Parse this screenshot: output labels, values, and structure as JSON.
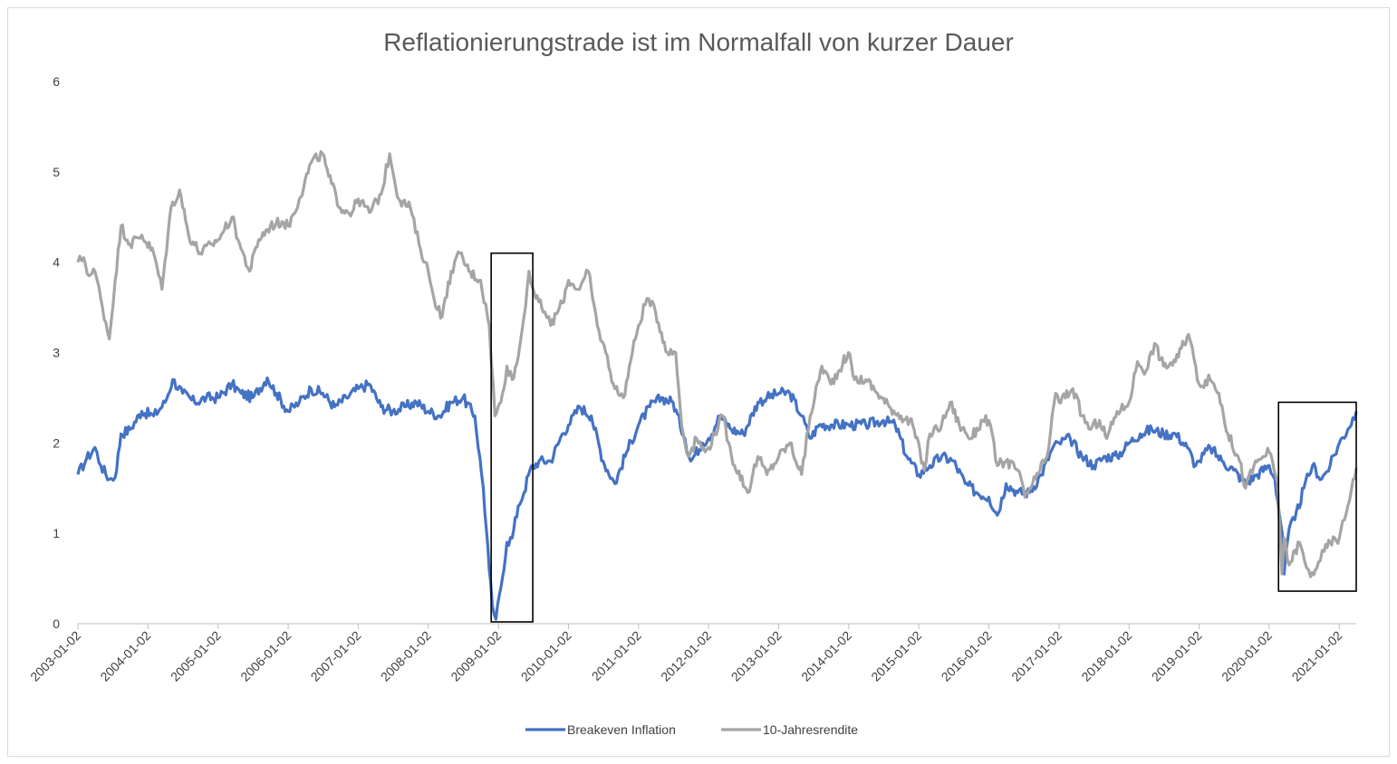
{
  "chart_data": {
    "type": "line",
    "title": "Reflationierungstrade ist im Normalfall von kurzer Dauer",
    "xlabel": "",
    "ylabel": "",
    "ylim": [
      0,
      6
    ],
    "y_ticks": [
      "0",
      "1",
      "2",
      "3",
      "4",
      "5",
      "6"
    ],
    "x_range": [
      "2003-01-02",
      "2021-03-31"
    ],
    "x_ticks": [
      "2003-01-02",
      "2004-01-02",
      "2005-01-02",
      "2006-01-02",
      "2007-01-02",
      "2008-01-02",
      "2009-01-02",
      "2010-01-02",
      "2011-01-02",
      "2012-01-02",
      "2013-01-02",
      "2014-01-02",
      "2015-01-02",
      "2016-01-02",
      "2017-01-02",
      "2018-01-02",
      "2019-01-02",
      "2020-01-02",
      "2021-01-02"
    ],
    "grid": false,
    "legend_position": "bottom",
    "series": [
      {
        "name": "Breakeven Inflation",
        "color": "#4472c4",
        "points": [
          [
            "2003-01-02",
            1.65
          ],
          [
            "2003-02-15",
            1.82
          ],
          [
            "2003-04-01",
            1.95
          ],
          [
            "2003-05-01",
            1.75
          ],
          [
            "2003-06-15",
            1.6
          ],
          [
            "2003-07-15",
            1.62
          ],
          [
            "2003-08-15",
            2.1
          ],
          [
            "2003-10-01",
            2.15
          ],
          [
            "2003-12-01",
            2.35
          ],
          [
            "2004-02-01",
            2.3
          ],
          [
            "2004-04-01",
            2.45
          ],
          [
            "2004-05-10",
            2.7
          ],
          [
            "2004-07-01",
            2.55
          ],
          [
            "2004-09-01",
            2.45
          ],
          [
            "2004-11-01",
            2.5
          ],
          [
            "2005-01-02",
            2.5
          ],
          [
            "2005-03-15",
            2.65
          ],
          [
            "2005-05-01",
            2.55
          ],
          [
            "2005-07-01",
            2.5
          ],
          [
            "2005-09-15",
            2.72
          ],
          [
            "2005-11-01",
            2.55
          ],
          [
            "2006-01-02",
            2.35
          ],
          [
            "2006-03-01",
            2.45
          ],
          [
            "2006-05-01",
            2.6
          ],
          [
            "2006-07-01",
            2.55
          ],
          [
            "2006-09-01",
            2.4
          ],
          [
            "2006-11-01",
            2.5
          ],
          [
            "2007-01-02",
            2.6
          ],
          [
            "2007-03-01",
            2.65
          ],
          [
            "2007-05-01",
            2.4
          ],
          [
            "2007-07-01",
            2.35
          ],
          [
            "2007-09-01",
            2.4
          ],
          [
            "2007-11-01",
            2.45
          ],
          [
            "2008-01-02",
            2.35
          ],
          [
            "2008-03-01",
            2.3
          ],
          [
            "2008-05-01",
            2.45
          ],
          [
            "2008-07-01",
            2.5
          ],
          [
            "2008-09-01",
            2.3
          ],
          [
            "2008-10-15",
            1.5
          ],
          [
            "2008-11-15",
            0.6
          ],
          [
            "2008-12-01",
            0.2
          ],
          [
            "2008-12-20",
            0.05
          ],
          [
            "2009-01-15",
            0.4
          ],
          [
            "2009-02-15",
            0.9
          ],
          [
            "2009-03-15",
            0.95
          ],
          [
            "2009-04-15",
            1.3
          ],
          [
            "2009-05-15",
            1.45
          ],
          [
            "2009-06-15",
            1.7
          ],
          [
            "2009-08-01",
            1.8
          ],
          [
            "2009-10-01",
            1.8
          ],
          [
            "2009-12-01",
            2.1
          ],
          [
            "2010-01-02",
            2.2
          ],
          [
            "2010-03-01",
            2.4
          ],
          [
            "2010-05-01",
            2.3
          ],
          [
            "2010-07-01",
            1.8
          ],
          [
            "2010-09-01",
            1.55
          ],
          [
            "2010-11-01",
            1.9
          ],
          [
            "2011-01-02",
            2.2
          ],
          [
            "2011-03-01",
            2.4
          ],
          [
            "2011-05-01",
            2.5
          ],
          [
            "2011-07-01",
            2.45
          ],
          [
            "2011-09-01",
            2.05
          ],
          [
            "2011-10-01",
            1.8
          ],
          [
            "2011-12-01",
            2.0
          ],
          [
            "2012-01-02",
            2.05
          ],
          [
            "2012-03-01",
            2.3
          ],
          [
            "2012-05-01",
            2.15
          ],
          [
            "2012-07-01",
            2.1
          ],
          [
            "2012-09-15",
            2.45
          ],
          [
            "2012-11-01",
            2.5
          ],
          [
            "2013-01-02",
            2.55
          ],
          [
            "2013-03-01",
            2.55
          ],
          [
            "2013-05-01",
            2.3
          ],
          [
            "2013-06-15",
            2.05
          ],
          [
            "2013-08-01",
            2.2
          ],
          [
            "2013-10-01",
            2.2
          ],
          [
            "2014-01-02",
            2.2
          ],
          [
            "2014-04-01",
            2.2
          ],
          [
            "2014-07-01",
            2.25
          ],
          [
            "2014-09-01",
            2.2
          ],
          [
            "2014-11-01",
            1.85
          ],
          [
            "2015-01-02",
            1.65
          ],
          [
            "2015-03-01",
            1.75
          ],
          [
            "2015-05-01",
            1.85
          ],
          [
            "2015-07-01",
            1.8
          ],
          [
            "2015-09-01",
            1.55
          ],
          [
            "2015-11-01",
            1.45
          ],
          [
            "2016-01-02",
            1.4
          ],
          [
            "2016-02-15",
            1.2
          ],
          [
            "2016-04-01",
            1.55
          ],
          [
            "2016-06-01",
            1.45
          ],
          [
            "2016-08-01",
            1.45
          ],
          [
            "2016-10-01",
            1.65
          ],
          [
            "2016-12-01",
            1.95
          ],
          [
            "2017-01-02",
            2.0
          ],
          [
            "2017-03-01",
            2.05
          ],
          [
            "2017-05-01",
            1.85
          ],
          [
            "2017-07-01",
            1.75
          ],
          [
            "2017-09-01",
            1.85
          ],
          [
            "2017-11-01",
            1.85
          ],
          [
            "2018-01-02",
            2.0
          ],
          [
            "2018-03-01",
            2.1
          ],
          [
            "2018-05-01",
            2.15
          ],
          [
            "2018-07-01",
            2.1
          ],
          [
            "2018-09-01",
            2.1
          ],
          [
            "2018-11-01",
            1.95
          ],
          [
            "2018-12-15",
            1.75
          ],
          [
            "2019-01-02",
            1.8
          ],
          [
            "2019-03-01",
            1.95
          ],
          [
            "2019-05-01",
            1.8
          ],
          [
            "2019-07-01",
            1.7
          ],
          [
            "2019-09-01",
            1.55
          ],
          [
            "2019-11-01",
            1.65
          ],
          [
            "2020-01-02",
            1.75
          ],
          [
            "2020-02-01",
            1.6
          ],
          [
            "2020-03-10",
            1.0
          ],
          [
            "2020-03-20",
            0.55
          ],
          [
            "2020-04-15",
            1.05
          ],
          [
            "2020-05-15",
            1.15
          ],
          [
            "2020-07-01",
            1.5
          ],
          [
            "2020-08-15",
            1.75
          ],
          [
            "2020-10-01",
            1.6
          ],
          [
            "2020-11-15",
            1.75
          ],
          [
            "2021-01-02",
            2.0
          ],
          [
            "2021-02-15",
            2.15
          ],
          [
            "2021-03-31",
            2.35
          ]
        ]
      },
      {
        "name": "10-Jahresrendite",
        "color": "#a5a5a5",
        "points": [
          [
            "2003-01-02",
            4.0
          ],
          [
            "2003-02-01",
            4.05
          ],
          [
            "2003-03-01",
            3.85
          ],
          [
            "2003-04-01",
            3.9
          ],
          [
            "2003-05-01",
            3.6
          ],
          [
            "2003-06-15",
            3.15
          ],
          [
            "2003-07-15",
            3.8
          ],
          [
            "2003-08-15",
            4.4
          ],
          [
            "2003-10-01",
            4.2
          ],
          [
            "2003-12-01",
            4.3
          ],
          [
            "2004-02-01",
            4.1
          ],
          [
            "2004-03-15",
            3.7
          ],
          [
            "2004-05-01",
            4.6
          ],
          [
            "2004-06-15",
            4.8
          ],
          [
            "2004-08-01",
            4.3
          ],
          [
            "2004-10-01",
            4.1
          ],
          [
            "2004-12-01",
            4.2
          ],
          [
            "2005-01-02",
            4.25
          ],
          [
            "2005-03-15",
            4.5
          ],
          [
            "2005-05-01",
            4.15
          ],
          [
            "2005-06-15",
            3.9
          ],
          [
            "2005-08-01",
            4.25
          ],
          [
            "2005-10-01",
            4.4
          ],
          [
            "2005-12-01",
            4.45
          ],
          [
            "2006-01-02",
            4.4
          ],
          [
            "2006-03-01",
            4.7
          ],
          [
            "2006-05-01",
            5.1
          ],
          [
            "2006-06-30",
            5.2
          ],
          [
            "2006-08-01",
            4.95
          ],
          [
            "2006-10-01",
            4.6
          ],
          [
            "2006-12-01",
            4.55
          ],
          [
            "2007-01-02",
            4.7
          ],
          [
            "2007-03-01",
            4.55
          ],
          [
            "2007-05-01",
            4.75
          ],
          [
            "2007-06-15",
            5.2
          ],
          [
            "2007-08-01",
            4.7
          ],
          [
            "2007-10-01",
            4.6
          ],
          [
            "2007-11-15",
            4.2
          ],
          [
            "2008-01-02",
            3.9
          ],
          [
            "2008-02-01",
            3.6
          ],
          [
            "2008-03-15",
            3.4
          ],
          [
            "2008-05-01",
            3.9
          ],
          [
            "2008-06-15",
            4.1
          ],
          [
            "2008-08-01",
            3.9
          ],
          [
            "2008-10-01",
            3.8
          ],
          [
            "2008-11-15",
            3.3
          ],
          [
            "2008-12-15",
            2.3
          ],
          [
            "2009-01-15",
            2.45
          ],
          [
            "2009-02-15",
            2.85
          ],
          [
            "2009-03-15",
            2.7
          ],
          [
            "2009-04-15",
            2.95
          ],
          [
            "2009-05-15",
            3.4
          ],
          [
            "2009-06-10",
            3.9
          ],
          [
            "2009-07-15",
            3.6
          ],
          [
            "2009-09-01",
            3.45
          ],
          [
            "2009-10-01",
            3.3
          ],
          [
            "2009-12-01",
            3.55
          ],
          [
            "2010-01-02",
            3.8
          ],
          [
            "2010-03-01",
            3.7
          ],
          [
            "2010-04-15",
            3.9
          ],
          [
            "2010-06-01",
            3.3
          ],
          [
            "2010-07-15",
            3.0
          ],
          [
            "2010-09-01",
            2.6
          ],
          [
            "2010-10-15",
            2.5
          ],
          [
            "2010-12-01",
            3.0
          ],
          [
            "2011-01-02",
            3.3
          ],
          [
            "2011-02-15",
            3.6
          ],
          [
            "2011-04-01",
            3.45
          ],
          [
            "2011-06-01",
            3.0
          ],
          [
            "2011-07-15",
            3.0
          ],
          [
            "2011-08-15",
            2.2
          ],
          [
            "2011-09-20",
            1.85
          ],
          [
            "2011-11-01",
            2.05
          ],
          [
            "2011-12-15",
            1.9
          ],
          [
            "2012-01-02",
            1.95
          ],
          [
            "2012-03-15",
            2.3
          ],
          [
            "2012-05-01",
            1.85
          ],
          [
            "2012-07-25",
            1.45
          ],
          [
            "2012-09-15",
            1.85
          ],
          [
            "2012-11-01",
            1.65
          ],
          [
            "2013-01-02",
            1.85
          ],
          [
            "2013-03-01",
            2.0
          ],
          [
            "2013-05-01",
            1.65
          ],
          [
            "2013-06-15",
            2.3
          ],
          [
            "2013-08-15",
            2.85
          ],
          [
            "2013-10-01",
            2.65
          ],
          [
            "2013-12-31",
            3.0
          ],
          [
            "2014-02-01",
            2.7
          ],
          [
            "2014-04-01",
            2.7
          ],
          [
            "2014-06-01",
            2.55
          ],
          [
            "2014-08-01",
            2.4
          ],
          [
            "2014-10-01",
            2.3
          ],
          [
            "2014-12-01",
            2.2
          ],
          [
            "2015-01-31",
            1.7
          ],
          [
            "2015-03-01",
            2.1
          ],
          [
            "2015-05-01",
            2.2
          ],
          [
            "2015-06-15",
            2.45
          ],
          [
            "2015-08-01",
            2.2
          ],
          [
            "2015-10-01",
            2.05
          ],
          [
            "2015-12-01",
            2.25
          ],
          [
            "2016-01-02",
            2.25
          ],
          [
            "2016-02-15",
            1.75
          ],
          [
            "2016-04-01",
            1.8
          ],
          [
            "2016-06-01",
            1.7
          ],
          [
            "2016-07-08",
            1.4
          ],
          [
            "2016-09-01",
            1.6
          ],
          [
            "2016-11-01",
            1.85
          ],
          [
            "2016-12-15",
            2.55
          ],
          [
            "2017-01-02",
            2.45
          ],
          [
            "2017-03-15",
            2.6
          ],
          [
            "2017-05-01",
            2.3
          ],
          [
            "2017-06-15",
            2.15
          ],
          [
            "2017-08-01",
            2.25
          ],
          [
            "2017-09-08",
            2.05
          ],
          [
            "2017-11-01",
            2.35
          ],
          [
            "2017-12-15",
            2.4
          ],
          [
            "2018-01-02",
            2.45
          ],
          [
            "2018-02-15",
            2.9
          ],
          [
            "2018-04-01",
            2.8
          ],
          [
            "2018-05-15",
            3.1
          ],
          [
            "2018-07-01",
            2.85
          ],
          [
            "2018-09-01",
            2.9
          ],
          [
            "2018-11-08",
            3.2
          ],
          [
            "2018-12-15",
            2.85
          ],
          [
            "2019-01-02",
            2.65
          ],
          [
            "2019-03-01",
            2.7
          ],
          [
            "2019-04-15",
            2.55
          ],
          [
            "2019-06-01",
            2.1
          ],
          [
            "2019-08-01",
            1.8
          ],
          [
            "2019-09-01",
            1.5
          ],
          [
            "2019-10-15",
            1.75
          ],
          [
            "2019-12-01",
            1.85
          ],
          [
            "2020-01-02",
            1.9
          ],
          [
            "2020-02-15",
            1.55
          ],
          [
            "2020-03-09",
            0.55
          ],
          [
            "2020-03-20",
            0.95
          ],
          [
            "2020-04-15",
            0.65
          ],
          [
            "2020-06-08",
            0.9
          ],
          [
            "2020-07-15",
            0.62
          ],
          [
            "2020-08-05",
            0.52
          ],
          [
            "2020-09-15",
            0.68
          ],
          [
            "2020-10-15",
            0.8
          ],
          [
            "2020-11-15",
            0.9
          ],
          [
            "2021-01-02",
            0.95
          ],
          [
            "2021-02-15",
            1.3
          ],
          [
            "2021-03-15",
            1.6
          ],
          [
            "2021-03-31",
            1.72
          ]
        ]
      }
    ],
    "annotations": [
      {
        "type": "box",
        "x_from": "2008-11-25",
        "x_to": "2009-06-30",
        "y_from": 0.02,
        "y_to": 4.1
      },
      {
        "type": "box",
        "x_from": "2020-02-20",
        "x_to": "2021-03-31",
        "y_from": 0.36,
        "y_to": 2.45
      }
    ]
  }
}
